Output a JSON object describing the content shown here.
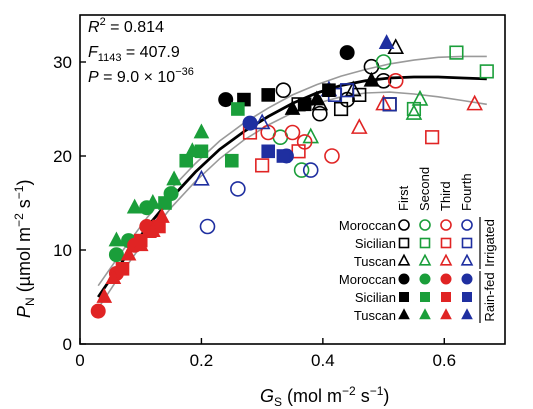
{
  "chart_data": {
    "type": "scatter",
    "xlim": [
      0,
      0.7
    ],
    "ylim": [
      0,
      35
    ],
    "x_ticks": [
      0,
      0.2,
      0.4,
      0.6
    ],
    "y_ticks": [
      0,
      10,
      20,
      30
    ],
    "tick_labels": {
      "x": [
        "0",
        "0.2",
        "0.4",
        "0.6"
      ],
      "y": [
        "0",
        "10",
        "20",
        "30"
      ]
    },
    "xlabel": {
      "main": "G",
      "sub": "S",
      "rest": " (mol m",
      "sup1": "−2",
      "rest2": " s",
      "sup2": "−1",
      "rest3": ")"
    },
    "ylabel": {
      "main": "P",
      "sub": "N",
      "rest": " (µmol m",
      "sup1": "−2",
      "rest2": " s",
      "sup2": "−1",
      "rest3": ")"
    },
    "stats": {
      "r2": {
        "main": "R",
        "sup": "2",
        "rest": " = 0.814"
      },
      "f": {
        "main": "F",
        "sub": "1143",
        "rest": " = 407.9"
      },
      "p": {
        "main": "P",
        "rest": " = 9.0 × 10",
        "sup": "−36"
      }
    },
    "grid": false,
    "legend": {
      "position": "bottom-right",
      "columns": [
        "First",
        "Second",
        "Third",
        "Fourth"
      ],
      "column_colors": [
        "#000000",
        "#1a9e3a",
        "#e02424",
        "#1f2fa0"
      ],
      "rows": [
        {
          "label": "Moroccan",
          "shape": "circle",
          "filled": false
        },
        {
          "label": "Sicilian",
          "shape": "square",
          "filled": false
        },
        {
          "label": "Tuscan",
          "shape": "triangle",
          "filled": false
        },
        {
          "label": "Moroccan",
          "shape": "circle",
          "filled": true
        },
        {
          "label": "Sicilian",
          "shape": "square",
          "filled": true
        },
        {
          "label": "Tuscan",
          "shape": "triangle",
          "filled": true
        }
      ],
      "group_labels": [
        "Irrigated",
        "Rain-fed"
      ]
    },
    "colors": {
      "first": "#000000",
      "second": "#1a9e3a",
      "third": "#e02424",
      "fourth": "#1f2fa0",
      "ci": "#9a9a9a",
      "fit": "#000000"
    },
    "fit_curve": {
      "x": [
        0.03,
        0.07,
        0.11,
        0.15,
        0.19,
        0.23,
        0.27,
        0.31,
        0.35,
        0.39,
        0.43,
        0.47,
        0.51,
        0.55,
        0.59,
        0.63,
        0.67
      ],
      "y": [
        5.0,
        8.8,
        12.4,
        15.5,
        18.3,
        20.7,
        22.6,
        24.2,
        25.6,
        26.7,
        27.5,
        28.0,
        28.3,
        28.4,
        28.4,
        28.3,
        28.2
      ]
    },
    "ci_upper": {
      "x": [
        0.03,
        0.07,
        0.11,
        0.15,
        0.19,
        0.23,
        0.27,
        0.31,
        0.35,
        0.39,
        0.43,
        0.47,
        0.51,
        0.55,
        0.59,
        0.63,
        0.67
      ],
      "y": [
        6.2,
        9.9,
        13.4,
        16.5,
        19.2,
        21.6,
        23.5,
        25.1,
        26.5,
        27.6,
        28.5,
        29.2,
        29.8,
        30.2,
        30.5,
        30.6,
        30.6
      ]
    },
    "ci_lower": {
      "x": [
        0.03,
        0.07,
        0.11,
        0.15,
        0.19,
        0.23,
        0.27,
        0.31,
        0.35,
        0.39,
        0.43,
        0.47,
        0.51,
        0.55,
        0.59,
        0.63,
        0.67
      ],
      "y": [
        3.8,
        7.7,
        11.3,
        14.5,
        17.3,
        19.7,
        21.7,
        23.3,
        24.6,
        25.6,
        26.3,
        26.7,
        26.8,
        26.6,
        26.3,
        25.9,
        25.5
      ]
    },
    "series": [
      {
        "pop": "Moroccan",
        "treatment": "Irrigated",
        "period": "First",
        "shape": "circle",
        "filled": false,
        "x": [
          0.335,
          0.395,
          0.44,
          0.48,
          0.5
        ],
        "y": [
          27.0,
          24.5,
          26.0,
          29.5,
          28.0
        ]
      },
      {
        "pop": "Sicilian",
        "treatment": "Irrigated",
        "period": "First",
        "shape": "square",
        "filled": false,
        "x": [
          0.36,
          0.43,
          0.46,
          0.51
        ],
        "y": [
          25.5,
          25.0,
          26.5,
          25.5
        ]
      },
      {
        "pop": "Tuscan",
        "treatment": "Irrigated",
        "period": "First",
        "shape": "triangle",
        "filled": false,
        "x": [
          0.395,
          0.45,
          0.52
        ],
        "y": [
          25.5,
          27.0,
          31.5
        ]
      },
      {
        "pop": "Moroccan",
        "treatment": "Irrigated",
        "period": "Second",
        "shape": "circle",
        "filled": false,
        "x": [
          0.33,
          0.365,
          0.5
        ],
        "y": [
          22.0,
          18.5,
          30.0
        ]
      },
      {
        "pop": "Sicilian",
        "treatment": "Irrigated",
        "period": "Second",
        "shape": "square",
        "filled": false,
        "x": [
          0.55,
          0.62,
          0.67
        ],
        "y": [
          25.0,
          31.0,
          29.0
        ]
      },
      {
        "pop": "Tuscan",
        "treatment": "Irrigated",
        "period": "Second",
        "shape": "triangle",
        "filled": false,
        "x": [
          0.38,
          0.55,
          0.56
        ],
        "y": [
          22.0,
          24.5,
          26.0
        ]
      },
      {
        "pop": "Moroccan",
        "treatment": "Irrigated",
        "period": "Third",
        "shape": "circle",
        "filled": false,
        "x": [
          0.31,
          0.35,
          0.37,
          0.415,
          0.52
        ],
        "y": [
          22.5,
          22.5,
          21.5,
          20.0,
          28.0
        ]
      },
      {
        "pop": "Sicilian",
        "treatment": "Irrigated",
        "period": "Third",
        "shape": "square",
        "filled": false,
        "x": [
          0.28,
          0.3,
          0.36,
          0.58
        ],
        "y": [
          22.5,
          19.0,
          20.5,
          22.0
        ]
      },
      {
        "pop": "Tuscan",
        "treatment": "Irrigated",
        "period": "Third",
        "shape": "triangle",
        "filled": false,
        "x": [
          0.46,
          0.5,
          0.65
        ],
        "y": [
          23.0,
          25.5,
          25.5
        ]
      },
      {
        "pop": "Moroccan",
        "treatment": "Irrigated",
        "period": "Fourth",
        "shape": "circle",
        "filled": false,
        "x": [
          0.21,
          0.26,
          0.38
        ],
        "y": [
          12.5,
          16.5,
          18.5
        ]
      },
      {
        "pop": "Sicilian",
        "treatment": "Irrigated",
        "period": "Fourth",
        "shape": "square",
        "filled": false,
        "x": [
          0.42,
          0.44,
          0.51
        ],
        "y": [
          26.5,
          27.0,
          25.5
        ]
      },
      {
        "pop": "Tuscan",
        "treatment": "Irrigated",
        "period": "Fourth",
        "shape": "triangle",
        "filled": false,
        "x": [
          0.2,
          0.3,
          0.41
        ],
        "y": [
          17.5,
          23.5,
          27.0
        ]
      },
      {
        "pop": "Moroccan",
        "treatment": "Rain-fed",
        "period": "First",
        "shape": "circle",
        "filled": true,
        "x": [
          0.24,
          0.44
        ],
        "y": [
          26.0,
          31.0
        ]
      },
      {
        "pop": "Sicilian",
        "treatment": "Rain-fed",
        "period": "First",
        "shape": "square",
        "filled": true,
        "x": [
          0.27,
          0.31,
          0.37,
          0.41
        ],
        "y": [
          26.0,
          26.5,
          25.5,
          27.0
        ]
      },
      {
        "pop": "Tuscan",
        "treatment": "Rain-fed",
        "period": "First",
        "shape": "triangle",
        "filled": true,
        "x": [
          0.35,
          0.39,
          0.48
        ],
        "y": [
          25.0,
          26.0,
          28.0
        ]
      },
      {
        "pop": "Moroccan",
        "treatment": "Rain-fed",
        "period": "Second",
        "shape": "circle",
        "filled": true,
        "x": [
          0.06,
          0.08,
          0.11,
          0.15
        ],
        "y": [
          9.5,
          11.0,
          14.5,
          16.0
        ]
      },
      {
        "pop": "Sicilian",
        "treatment": "Rain-fed",
        "period": "Second",
        "shape": "square",
        "filled": true,
        "x": [
          0.14,
          0.175,
          0.2,
          0.25,
          0.26
        ],
        "y": [
          15.0,
          19.5,
          20.5,
          19.5,
          25.0
        ]
      },
      {
        "pop": "Tuscan",
        "treatment": "Rain-fed",
        "period": "Second",
        "shape": "triangle",
        "filled": true,
        "x": [
          0.06,
          0.09,
          0.12,
          0.155,
          0.185,
          0.2
        ],
        "y": [
          11.0,
          14.5,
          15.0,
          17.5,
          20.5,
          22.5
        ]
      },
      {
        "pop": "Moroccan",
        "treatment": "Rain-fed",
        "period": "Third",
        "shape": "circle",
        "filled": true,
        "x": [
          0.03,
          0.06,
          0.09,
          0.11
        ],
        "y": [
          3.5,
          7.5,
          10.5,
          12.5
        ]
      },
      {
        "pop": "Sicilian",
        "treatment": "Rain-fed",
        "period": "Third",
        "shape": "square",
        "filled": true,
        "x": [
          0.07,
          0.1,
          0.115,
          0.13
        ],
        "y": [
          8.0,
          11.0,
          12.0,
          12.5
        ]
      },
      {
        "pop": "Tuscan",
        "treatment": "Rain-fed",
        "period": "Third",
        "shape": "triangle",
        "filled": true,
        "x": [
          0.04,
          0.055,
          0.08,
          0.1,
          0.12,
          0.135
        ],
        "y": [
          5.0,
          7.0,
          9.5,
          10.5,
          12.0,
          13.5
        ]
      },
      {
        "pop": "Moroccan",
        "treatment": "Rain-fed",
        "period": "Fourth",
        "shape": "circle",
        "filled": true,
        "x": [
          0.28,
          0.34
        ],
        "y": [
          23.5,
          20.0
        ]
      },
      {
        "pop": "Sicilian",
        "treatment": "Rain-fed",
        "period": "Fourth",
        "shape": "square",
        "filled": true,
        "x": [
          0.31,
          0.335
        ],
        "y": [
          20.5,
          20.0
        ]
      },
      {
        "pop": "Tuscan",
        "treatment": "Rain-fed",
        "period": "Fourth",
        "shape": "triangle",
        "filled": true,
        "x": [
          0.505
        ],
        "y": [
          32.0
        ]
      }
    ]
  }
}
